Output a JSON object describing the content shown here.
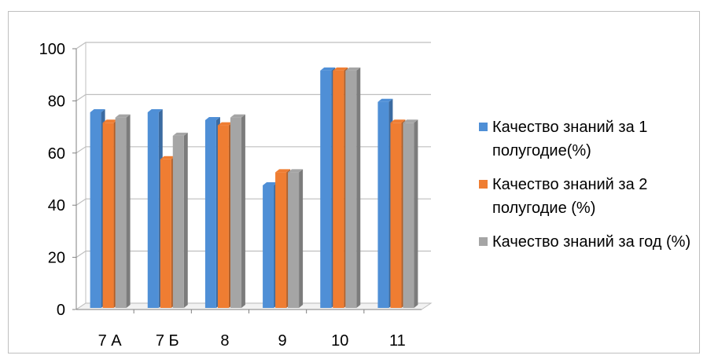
{
  "chart_data": {
    "type": "bar",
    "categories": [
      "7 А",
      "7 Б",
      "8",
      "9",
      "10",
      "11"
    ],
    "series": [
      {
        "name": "Качество знаний за 1 полугодие(%)",
        "values": [
          75,
          75,
          72,
          47,
          91,
          79
        ],
        "color": "#4f8fd6"
      },
      {
        "name": "Качество знаний за 2 полугодие (%)",
        "values": [
          71,
          57,
          70,
          52,
          91,
          71
        ],
        "color": "#ef7d32"
      },
      {
        "name": "Качество знаний за год (%)",
        "values": [
          73,
          66,
          73,
          52,
          91,
          71
        ],
        "color": "#a5a5a5"
      }
    ],
    "yticks": [
      "0",
      "20",
      "40",
      "60",
      "80",
      "100"
    ],
    "ylim": [
      0,
      100
    ],
    "grid": true,
    "legend_position": "right"
  }
}
